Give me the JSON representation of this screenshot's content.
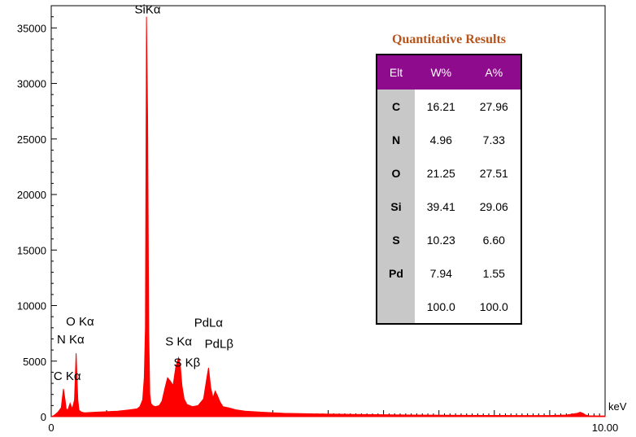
{
  "chart_data": {
    "type": "line",
    "title": "",
    "xlabel": "keV",
    "ylabel": "",
    "xlim": [
      0,
      10.0
    ],
    "ylim": [
      0,
      37000
    ],
    "x_ticks": [
      0,
      10.0
    ],
    "x_tick_labels": [
      "0",
      "10.00"
    ],
    "y_ticks": [
      0,
      5000,
      10000,
      15000,
      20000,
      25000,
      30000,
      35000
    ],
    "y_tick_labels": [
      "0",
      "5000",
      "10000",
      "15000",
      "20000",
      "25000",
      "30000",
      "35000"
    ],
    "series": [
      {
        "color": "#ff0000",
        "x": [
          0.0,
          0.05,
          0.12,
          0.18,
          0.22,
          0.25,
          0.27,
          0.3,
          0.34,
          0.38,
          0.42,
          0.45,
          0.48,
          0.5,
          0.52,
          0.55,
          0.6,
          0.8,
          1.0,
          1.2,
          1.4,
          1.55,
          1.6,
          1.65,
          1.68,
          1.7,
          1.72,
          1.74,
          1.76,
          1.78,
          1.8,
          1.83,
          1.88,
          1.95,
          2.0,
          2.05,
          2.1,
          2.15,
          2.2,
          2.25,
          2.3,
          2.33,
          2.36,
          2.4,
          2.45,
          2.55,
          2.65,
          2.75,
          2.8,
          2.84,
          2.88,
          2.92,
          2.96,
          3.0,
          3.05,
          3.1,
          3.2,
          3.35,
          3.5,
          3.8,
          4.2,
          4.8,
          5.5,
          6.5,
          7.5,
          8.5,
          9.0,
          9.3,
          9.5,
          9.55,
          9.6,
          9.65,
          9.7,
          10.0
        ],
        "y": [
          0,
          100,
          400,
          800,
          2500,
          1500,
          700,
          600,
          1200,
          700,
          1500,
          5700,
          1500,
          600,
          500,
          400,
          350,
          400,
          450,
          500,
          600,
          700,
          900,
          1500,
          3500,
          8000,
          36000,
          27000,
          7500,
          2000,
          1200,
          1000,
          900,
          1000,
          1400,
          2500,
          3500,
          3200,
          2800,
          4500,
          5300,
          4600,
          2800,
          1600,
          1100,
          900,
          1000,
          1600,
          3200,
          4400,
          2600,
          1700,
          2300,
          1900,
          1300,
          900,
          800,
          600,
          500,
          400,
          300,
          250,
          200,
          150,
          120,
          100,
          100,
          150,
          300,
          400,
          300,
          150,
          80,
          50
        ]
      }
    ],
    "annotations": [
      {
        "text": "SiKα",
        "x": 1.74,
        "y": 36000
      },
      {
        "text": "O Kα",
        "x": 0.52,
        "y": 7900
      },
      {
        "text": "N Kα",
        "x": 0.35,
        "y": 6300
      },
      {
        "text": "C Kα",
        "x": 0.29,
        "y": 3000
      },
      {
        "text": "PdLα",
        "x": 2.84,
        "y": 7800
      },
      {
        "text": "S Kα",
        "x": 2.3,
        "y": 6100
      },
      {
        "text": "PdLβ",
        "x": 3.03,
        "y": 5900
      },
      {
        "text": "S Kβ",
        "x": 2.45,
        "y": 4200
      }
    ]
  },
  "results": {
    "title": "Quantitative Results",
    "headers": [
      "Elt",
      "W%",
      "A%"
    ],
    "rows": [
      [
        "C",
        "16.21",
        "27.96"
      ],
      [
        "N",
        "4.96",
        "7.33"
      ],
      [
        "O",
        "21.25",
        "27.51"
      ],
      [
        "Si",
        "39.41",
        "29.06"
      ],
      [
        "S",
        "10.23",
        "6.60"
      ],
      [
        "Pd",
        "7.94",
        "1.55"
      ],
      [
        "",
        "100.0",
        "100.0"
      ]
    ]
  }
}
